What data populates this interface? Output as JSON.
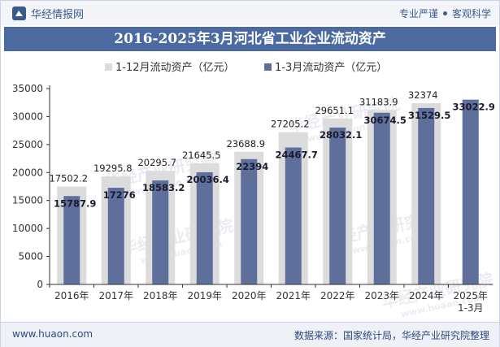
{
  "header": {
    "brand_name": "华经情报网",
    "tag_1": "专业严谨",
    "tag_2": "客观科学"
  },
  "title": "2016-2025年3月河北省工业企业流动资产",
  "watermark": "华经产业研究院",
  "watermark_url": "www.huaon.com",
  "footer": {
    "website": "www.huaon.com",
    "source": "数据来源：国家统计局，华经产业研究院整理"
  },
  "colors": {
    "series_bg": "#dcdcdc",
    "series_fg": "#5f6f9c",
    "title_bar": "#4a6aa1"
  },
  "chart_data": {
    "type": "bar",
    "categories": [
      "2016年",
      "2017年",
      "2018年",
      "2019年",
      "2020年",
      "2021年",
      "2022年",
      "2023年",
      "2024年",
      "2025年\n1-3月"
    ],
    "series": [
      {
        "name": "1-12月流动资产（亿元）",
        "values": [
          17502.2,
          19295.8,
          20295.7,
          21645.5,
          23688.9,
          27205.2,
          29651.1,
          31183.9,
          32374,
          null
        ],
        "labels": [
          "17502.2",
          "19295.8",
          "20295.7",
          "21645.5",
          "23688.9",
          "27205.2",
          "29651.1",
          "31183.9",
          "32374",
          ""
        ]
      },
      {
        "name": "1-3月流动资产（亿元）",
        "values": [
          15787.9,
          17276,
          18583.2,
          20036.4,
          22394,
          24467.7,
          28032.1,
          30674.5,
          31529.5,
          33022.9
        ],
        "labels": [
          "15787.9",
          "17276",
          "18583.2",
          "20036.4",
          "22394",
          "24467.7",
          "28032.1",
          "30674.5",
          "31529.5",
          "33022.9"
        ]
      }
    ],
    "yticks": [
      "0",
      "5000",
      "10000",
      "15000",
      "20000",
      "25000",
      "30000",
      "35000"
    ],
    "ylim": [
      0,
      35000
    ],
    "legend_position": "top-center",
    "grid": false
  }
}
